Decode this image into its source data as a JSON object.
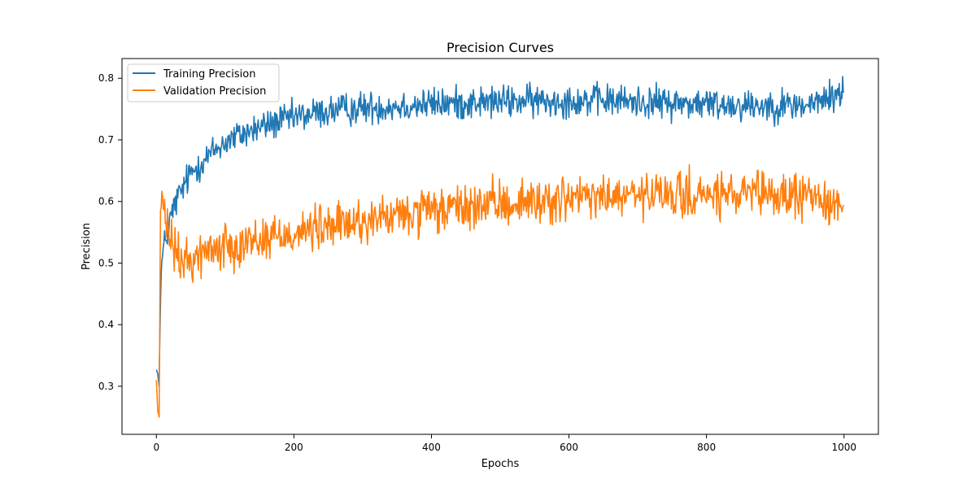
{
  "chart_data": {
    "type": "line",
    "title": "Precision Curves",
    "xlabel": "Epochs",
    "ylabel": "Precision",
    "xlim": [
      -50,
      1050
    ],
    "ylim": [
      0.222,
      0.832
    ],
    "x_ticks": [
      0,
      200,
      400,
      600,
      800,
      1000
    ],
    "y_ticks": [
      0.3,
      0.4,
      0.5,
      0.6,
      0.7,
      0.8
    ],
    "grid": false,
    "legend_position": "top-left",
    "colors": {
      "training": "#1f77b4",
      "validation": "#ff7f0e",
      "axes": "#000000"
    },
    "series": [
      {
        "name": "Training Precision",
        "color": "#1f77b4",
        "x": [
          0,
          2,
          4,
          6,
          8,
          10,
          15,
          20,
          25,
          30,
          40,
          50,
          60,
          70,
          80,
          90,
          100,
          120,
          140,
          160,
          180,
          200,
          230,
          260,
          300,
          350,
          400,
          450,
          500,
          550,
          600,
          650,
          700,
          750,
          800,
          850,
          900,
          950,
          1000
        ],
        "values": [
          0.327,
          0.32,
          0.3,
          0.46,
          0.5,
          0.52,
          0.545,
          0.57,
          0.588,
          0.603,
          0.625,
          0.645,
          0.658,
          0.668,
          0.678,
          0.688,
          0.696,
          0.707,
          0.716,
          0.724,
          0.73,
          0.736,
          0.743,
          0.748,
          0.752,
          0.755,
          0.758,
          0.76,
          0.762,
          0.763,
          0.764,
          0.764,
          0.762,
          0.76,
          0.758,
          0.757,
          0.756,
          0.756,
          0.778
        ],
        "noise": 0.018
      },
      {
        "name": "Validation Precision",
        "color": "#ff7f0e",
        "x": [
          0,
          2,
          4,
          6,
          8,
          10,
          15,
          20,
          25,
          30,
          40,
          50,
          60,
          70,
          80,
          100,
          120,
          150,
          180,
          200,
          250,
          300,
          350,
          400,
          450,
          500,
          550,
          600,
          650,
          700,
          750,
          800,
          850,
          900,
          950,
          1000
        ],
        "values": [
          0.31,
          0.26,
          0.25,
          0.59,
          0.61,
          0.58,
          0.56,
          0.54,
          0.525,
          0.51,
          0.5,
          0.505,
          0.512,
          0.518,
          0.522,
          0.528,
          0.533,
          0.539,
          0.545,
          0.55,
          0.558,
          0.568,
          0.576,
          0.583,
          0.59,
          0.596,
          0.6,
          0.604,
          0.607,
          0.608,
          0.609,
          0.609,
          0.609,
          0.609,
          0.609,
          0.593
        ],
        "noise": 0.025
      }
    ]
  }
}
